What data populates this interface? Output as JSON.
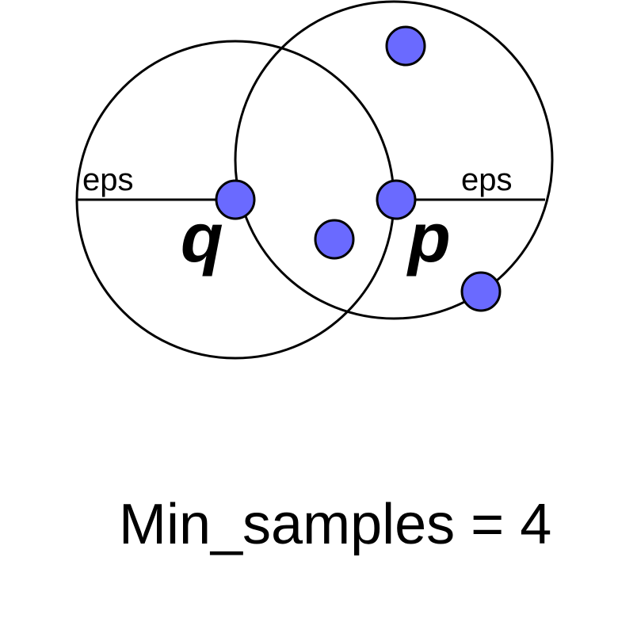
{
  "diagram": {
    "labels": {
      "eps_left": "eps",
      "eps_right": "eps",
      "q": "q",
      "p": "p"
    },
    "caption": "Min_samples = 4",
    "colors": {
      "point_fill": "#6a6aff",
      "stroke": "#000000"
    }
  }
}
